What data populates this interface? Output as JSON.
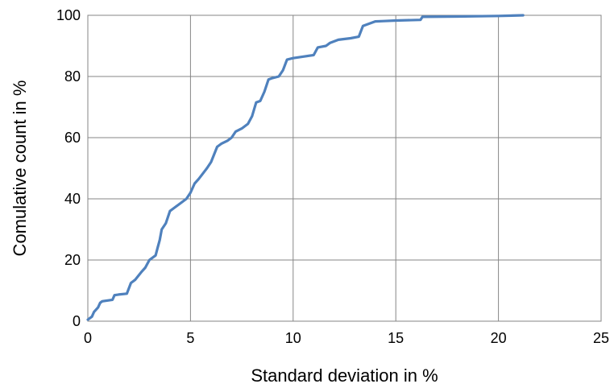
{
  "chart_data": {
    "type": "line",
    "title": "",
    "xlabel": "Standard deviation in %",
    "ylabel": "Comulative count in %",
    "xlim": [
      0,
      25
    ],
    "ylim": [
      0,
      100
    ],
    "xticks": [
      "0",
      "5",
      "10",
      "15",
      "20",
      "25"
    ],
    "yticks": [
      "0",
      "20",
      "40",
      "60",
      "80",
      "100"
    ],
    "grid": true,
    "legend": "none",
    "series": [
      {
        "color": "#4f81bd",
        "x": [
          0.0,
          0.2,
          0.3,
          0.5,
          0.6,
          0.7,
          1.2,
          1.3,
          1.5,
          1.9,
          2.1,
          2.3,
          2.6,
          2.8,
          3.0,
          3.3,
          3.4,
          3.5,
          3.6,
          3.8,
          4.0,
          4.2,
          4.4,
          4.8,
          5.0,
          5.2,
          5.4,
          5.8,
          6.0,
          6.3,
          6.5,
          6.8,
          7.0,
          7.2,
          7.5,
          7.8,
          8.0,
          8.2,
          8.4,
          8.6,
          8.8,
          9.0,
          9.3,
          9.5,
          9.7,
          10.0,
          10.5,
          11.0,
          11.2,
          11.6,
          11.8,
          12.2,
          12.8,
          13.2,
          13.4,
          13.6,
          14.0,
          14.4,
          15.0,
          16.2,
          16.3,
          18.0,
          20.0,
          21.2
        ],
        "y": [
          0.5,
          1.5,
          3.0,
          4.5,
          6.0,
          6.5,
          7.0,
          8.5,
          8.7,
          9.0,
          12.5,
          13.5,
          16.0,
          17.5,
          20.0,
          21.5,
          24.0,
          26.5,
          30.0,
          32.0,
          36.0,
          37.0,
          38.0,
          40.0,
          42.0,
          45.0,
          46.5,
          50.0,
          52.0,
          57.0,
          58.0,
          59.0,
          60.0,
          62.0,
          63.0,
          64.5,
          67.0,
          71.5,
          72.0,
          75.0,
          79.0,
          79.5,
          80.0,
          82.0,
          85.5,
          86.0,
          86.5,
          87.0,
          89.5,
          90.0,
          91.0,
          92.0,
          92.5,
          93.0,
          96.5,
          97.0,
          98.0,
          98.1,
          98.3,
          98.5,
          99.5,
          99.6,
          99.8,
          100.0
        ]
      }
    ]
  }
}
